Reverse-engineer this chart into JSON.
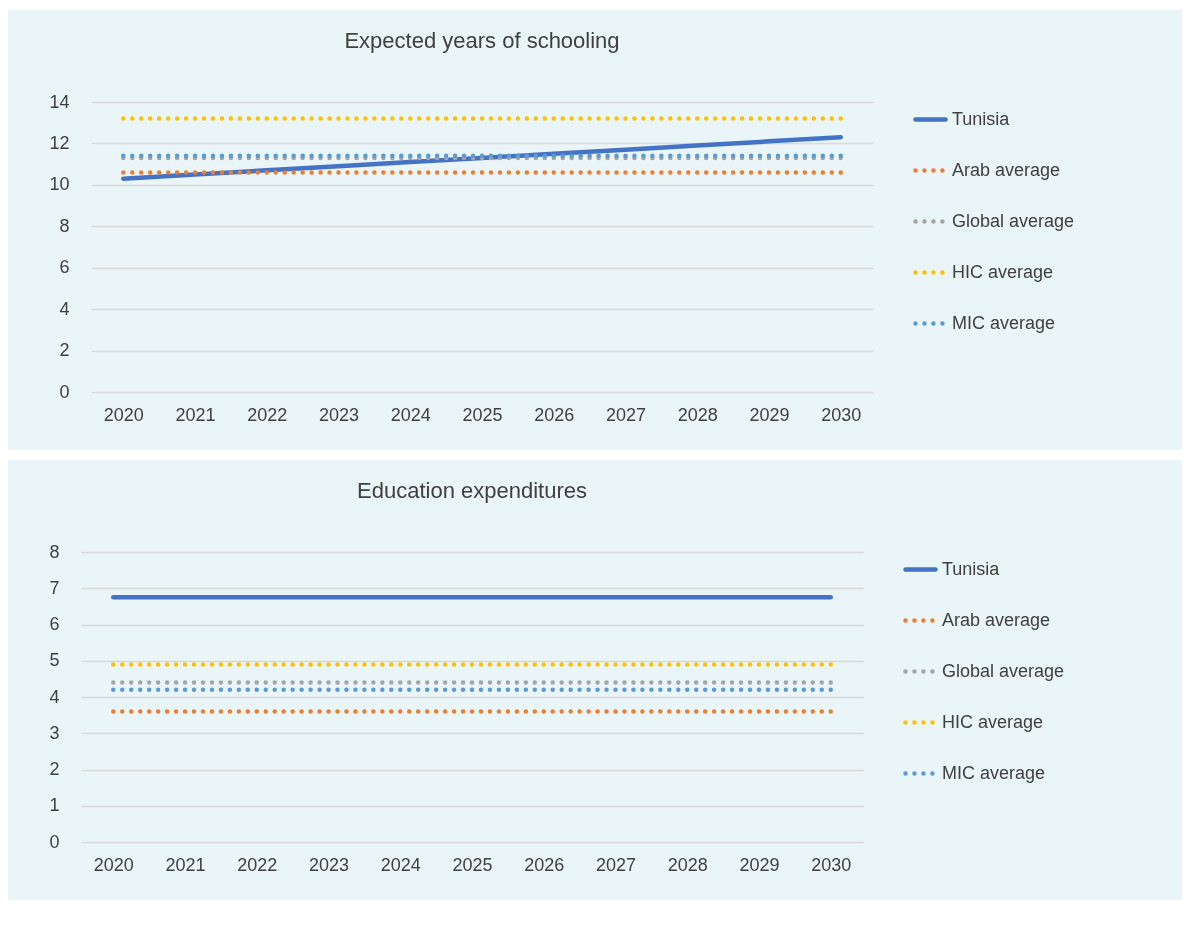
{
  "chart_data": [
    {
      "type": "line",
      "title": "Expected years of schooling",
      "categories": [
        "2020",
        "2021",
        "2022",
        "2023",
        "2024",
        "2025",
        "2026",
        "2027",
        "2028",
        "2029",
        "2030"
      ],
      "ylim": [
        0,
        14
      ],
      "yticks": [
        0,
        2,
        4,
        6,
        8,
        10,
        12,
        14
      ],
      "grid": "y",
      "legend": "right",
      "marker": "none",
      "series": [
        {
          "name": "Tunisia",
          "color": "#4472c4",
          "line_style": "solid",
          "values": [
            10.3,
            10.5,
            10.7,
            10.9,
            11.1,
            11.3,
            11.5,
            11.7,
            11.9,
            12.1,
            12.3
          ]
        },
        {
          "name": "Arab average",
          "color": "#ed7d31",
          "line_style": "dotted",
          "values": [
            10.6,
            10.6,
            10.6,
            10.6,
            10.6,
            10.6,
            10.6,
            10.6,
            10.6,
            10.6,
            10.6
          ]
        },
        {
          "name": "Global average",
          "color": "#a5a5a5",
          "line_style": "dotted",
          "values": [
            11.3,
            11.3,
            11.3,
            11.3,
            11.3,
            11.3,
            11.3,
            11.3,
            11.3,
            11.3,
            11.3
          ]
        },
        {
          "name": "HIC average",
          "color": "#ffc000",
          "line_style": "dotted",
          "values": [
            13.2,
            13.2,
            13.2,
            13.2,
            13.2,
            13.2,
            13.2,
            13.2,
            13.2,
            13.2,
            13.2
          ]
        },
        {
          "name": "MIC average",
          "color": "#5b9bd5",
          "line_style": "dotted",
          "values": [
            11.4,
            11.4,
            11.4,
            11.4,
            11.4,
            11.4,
            11.4,
            11.4,
            11.4,
            11.4,
            11.4
          ]
        }
      ]
    },
    {
      "type": "line",
      "title": "Education expenditures",
      "categories": [
        "2020",
        "2021",
        "2022",
        "2023",
        "2024",
        "2025",
        "2026",
        "2027",
        "2028",
        "2029",
        "2030"
      ],
      "ylim": [
        0,
        8
      ],
      "yticks": [
        0,
        1,
        2,
        3,
        4,
        5,
        6,
        7,
        8
      ],
      "grid": "y",
      "legend": "right",
      "marker": "none",
      "series": [
        {
          "name": "Tunisia",
          "color": "#4472c4",
          "line_style": "solid",
          "values": [
            6.75,
            6.75,
            6.75,
            6.75,
            6.75,
            6.75,
            6.75,
            6.75,
            6.75,
            6.75,
            6.75
          ]
        },
        {
          "name": "Arab average",
          "color": "#ed7d31",
          "line_style": "dotted",
          "values": [
            3.6,
            3.6,
            3.6,
            3.6,
            3.6,
            3.6,
            3.6,
            3.6,
            3.6,
            3.6,
            3.6
          ]
        },
        {
          "name": "Global average",
          "color": "#a5a5a5",
          "line_style": "dotted",
          "values": [
            4.4,
            4.4,
            4.4,
            4.4,
            4.4,
            4.4,
            4.4,
            4.4,
            4.4,
            4.4,
            4.4
          ]
        },
        {
          "name": "HIC average",
          "color": "#ffc000",
          "line_style": "dotted",
          "values": [
            4.9,
            4.9,
            4.9,
            4.9,
            4.9,
            4.9,
            4.9,
            4.9,
            4.9,
            4.9,
            4.9
          ]
        },
        {
          "name": "MIC average",
          "color": "#5b9bd5",
          "line_style": "dotted",
          "values": [
            4.2,
            4.2,
            4.2,
            4.2,
            4.2,
            4.2,
            4.2,
            4.2,
            4.2,
            4.2,
            4.2
          ]
        }
      ]
    }
  ]
}
